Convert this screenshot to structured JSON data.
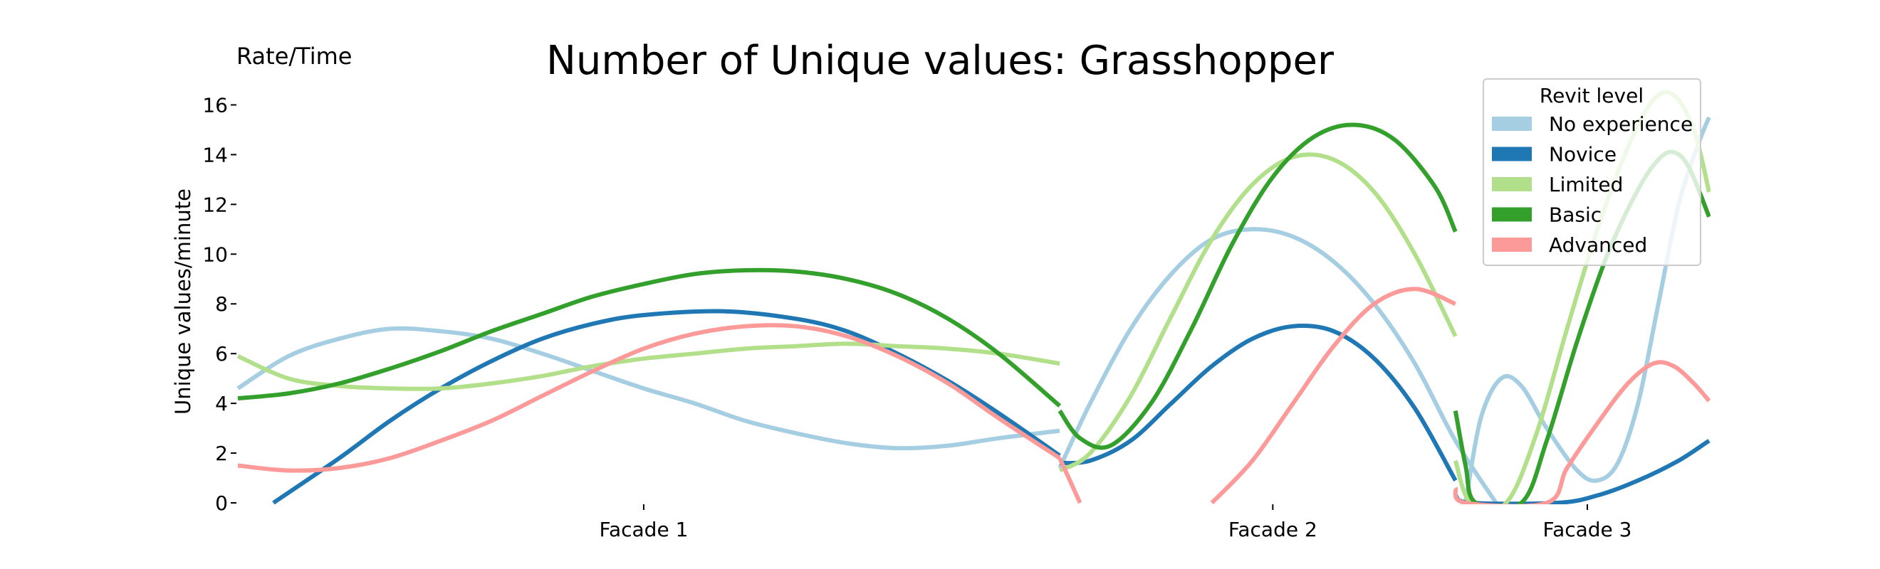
{
  "chart_data": {
    "type": "line",
    "title": "Number of Unique values: Grasshopper",
    "corner_label": "Rate/Time",
    "ylabel": "Unique values/minute",
    "xlabel": "",
    "ylim": [
      0,
      16.5
    ],
    "yticks": [
      0,
      2,
      4,
      6,
      8,
      10,
      12,
      14,
      16
    ],
    "grid": false,
    "categories": [
      "Facade 1",
      "Facade 2",
      "Facade 3"
    ],
    "category_x": [
      4.0,
      10.2,
      13.3
    ],
    "xlim": [
      0,
      14.5
    ],
    "legend": {
      "title": "Revit level",
      "placement": "top-right",
      "entries": [
        "No experience",
        "Novice",
        "Limited",
        "Basic",
        "Advanced"
      ]
    },
    "colors": [
      "#a6cee3",
      "#1f78b4",
      "#b2df8a",
      "#33a02c",
      "#fb9a99"
    ],
    "segments": [
      {
        "series": [
          {
            "points": [
              [
                0.0,
                4.6
              ],
              [
                0.5,
                5.9
              ],
              [
                1.0,
                6.6
              ],
              [
                1.5,
                7.0
              ],
              [
                2.0,
                6.9
              ],
              [
                2.5,
                6.6
              ],
              [
                3.0,
                6.0
              ],
              [
                3.5,
                5.3
              ],
              [
                4.0,
                4.6
              ],
              [
                4.5,
                4.0
              ],
              [
                5.0,
                3.3
              ],
              [
                5.5,
                2.8
              ],
              [
                6.0,
                2.4
              ],
              [
                6.5,
                2.2
              ],
              [
                7.0,
                2.3
              ],
              [
                7.5,
                2.6
              ],
              [
                8.1,
                2.9
              ]
            ]
          },
          {
            "points": [
              [
                0.35,
                0.0
              ],
              [
                1.0,
                1.8
              ],
              [
                1.5,
                3.3
              ],
              [
                2.0,
                4.6
              ],
              [
                2.5,
                5.7
              ],
              [
                3.0,
                6.6
              ],
              [
                3.5,
                7.2
              ],
              [
                4.0,
                7.55
              ],
              [
                4.8,
                7.7
              ],
              [
                5.5,
                7.4
              ],
              [
                6.0,
                6.9
              ],
              [
                6.5,
                6.0
              ],
              [
                7.0,
                4.9
              ],
              [
                7.5,
                3.6
              ],
              [
                8.1,
                1.9
              ]
            ]
          },
          {
            "points": [
              [
                0.0,
                5.9
              ],
              [
                0.5,
                5.0
              ],
              [
                1.0,
                4.7
              ],
              [
                1.5,
                4.6
              ],
              [
                2.0,
                4.6
              ],
              [
                2.5,
                4.8
              ],
              [
                3.0,
                5.1
              ],
              [
                3.5,
                5.5
              ],
              [
                4.0,
                5.8
              ],
              [
                4.5,
                6.0
              ],
              [
                5.0,
                6.2
              ],
              [
                5.5,
                6.3
              ],
              [
                6.0,
                6.4
              ],
              [
                6.5,
                6.3
              ],
              [
                7.0,
                6.2
              ],
              [
                7.5,
                6.0
              ],
              [
                8.1,
                5.6
              ]
            ]
          },
          {
            "points": [
              [
                0.0,
                4.2
              ],
              [
                0.5,
                4.4
              ],
              [
                1.0,
                4.8
              ],
              [
                1.5,
                5.4
              ],
              [
                2.0,
                6.1
              ],
              [
                2.5,
                6.9
              ],
              [
                3.0,
                7.6
              ],
              [
                3.5,
                8.3
              ],
              [
                4.0,
                8.8
              ],
              [
                4.5,
                9.2
              ],
              [
                5.0,
                9.35
              ],
              [
                5.5,
                9.3
              ],
              [
                6.0,
                9.0
              ],
              [
                6.5,
                8.4
              ],
              [
                7.0,
                7.4
              ],
              [
                7.5,
                6.0
              ],
              [
                8.1,
                3.9
              ]
            ]
          },
          {
            "points": [
              [
                0.0,
                1.5
              ],
              [
                0.5,
                1.3
              ],
              [
                1.0,
                1.4
              ],
              [
                1.5,
                1.8
              ],
              [
                2.0,
                2.5
              ],
              [
                2.5,
                3.3
              ],
              [
                3.0,
                4.3
              ],
              [
                3.5,
                5.3
              ],
              [
                4.0,
                6.2
              ],
              [
                4.5,
                6.8
              ],
              [
                5.0,
                7.1
              ],
              [
                5.5,
                7.1
              ],
              [
                6.0,
                6.7
              ],
              [
                6.5,
                5.9
              ],
              [
                7.0,
                4.8
              ],
              [
                7.5,
                3.4
              ],
              [
                8.1,
                1.8
              ]
            ]
          }
        ]
      },
      {
        "series": [
          {
            "points": [
              [
                8.1,
                1.4
              ],
              [
                8.4,
                4.0
              ],
              [
                8.8,
                7.0
              ],
              [
                9.2,
                9.2
              ],
              [
                9.6,
                10.6
              ],
              [
                10.0,
                11.0
              ],
              [
                10.4,
                10.7
              ],
              [
                10.8,
                9.7
              ],
              [
                11.2,
                8.0
              ],
              [
                11.6,
                5.6
              ],
              [
                12.0,
                2.5
              ],
              [
                12.4,
                0.0
              ]
            ]
          },
          {
            "points": [
              [
                8.1,
                1.6
              ],
              [
                8.4,
                1.7
              ],
              [
                8.8,
                2.5
              ],
              [
                9.2,
                4.0
              ],
              [
                9.6,
                5.5
              ],
              [
                10.0,
                6.6
              ],
              [
                10.4,
                7.1
              ],
              [
                10.8,
                6.9
              ],
              [
                11.2,
                5.8
              ],
              [
                11.6,
                3.8
              ],
              [
                12.0,
                0.9
              ]
            ]
          },
          {
            "points": [
              [
                8.1,
                1.3
              ],
              [
                8.4,
                2.0
              ],
              [
                8.8,
                4.3
              ],
              [
                9.2,
                7.5
              ],
              [
                9.6,
                10.6
              ],
              [
                10.0,
                12.8
              ],
              [
                10.4,
                13.9
              ],
              [
                10.8,
                13.8
              ],
              [
                11.2,
                12.5
              ],
              [
                11.6,
                10.0
              ],
              [
                12.0,
                6.7
              ]
            ]
          },
          {
            "points": [
              [
                8.1,
                3.7
              ],
              [
                8.3,
                2.6
              ],
              [
                8.6,
                2.3
              ],
              [
                9.0,
                4.0
              ],
              [
                9.4,
                7.0
              ],
              [
                9.8,
                10.4
              ],
              [
                10.2,
                13.1
              ],
              [
                10.6,
                14.7
              ],
              [
                11.0,
                15.2
              ],
              [
                11.4,
                14.6
              ],
              [
                11.8,
                12.7
              ],
              [
                12.0,
                10.9
              ]
            ]
          },
          {
            "points": [
              [
                8.1,
                1.8
              ],
              [
                8.3,
                0.0
              ]
            ],
            "extra": [
              [
                9.6,
                0.0
              ],
              [
                10.0,
                1.7
              ],
              [
                10.4,
                4.0
              ],
              [
                10.8,
                6.3
              ],
              [
                11.2,
                8.0
              ],
              [
                11.6,
                8.6
              ],
              [
                12.0,
                8.0
              ]
            ]
          }
        ]
      },
      {
        "series": [
          {
            "points": [
              [
                12.1,
                0.0
              ],
              [
                12.25,
                3.4
              ],
              [
                12.45,
                5.0
              ],
              [
                12.65,
                4.7
              ],
              [
                12.9,
                3.0
              ],
              [
                13.2,
                1.3
              ],
              [
                13.4,
                0.9
              ],
              [
                13.6,
                1.6
              ],
              [
                13.8,
                4.0
              ],
              [
                14.0,
                8.0
              ],
              [
                14.2,
                12.0
              ],
              [
                14.4,
                14.5
              ],
              [
                14.5,
                15.5
              ]
            ]
          },
          {
            "points": [
              [
                12.0,
                0.3
              ],
              [
                12.15,
                0.0
              ],
              [
                13.0,
                0.0
              ],
              [
                13.4,
                0.3
              ],
              [
                13.8,
                0.9
              ],
              [
                14.2,
                1.7
              ],
              [
                14.5,
                2.5
              ]
            ]
          },
          {
            "points": [
              [
                12.0,
                1.7
              ],
              [
                12.15,
                0.0
              ],
              [
                12.5,
                0.0
              ],
              [
                12.8,
                2.8
              ],
              [
                13.1,
                7.0
              ],
              [
                13.4,
                11.0
              ],
              [
                13.7,
                14.3
              ],
              [
                13.95,
                16.2
              ],
              [
                14.15,
                16.4
              ],
              [
                14.35,
                15.0
              ],
              [
                14.5,
                12.5
              ]
            ]
          },
          {
            "points": [
              [
                12.0,
                3.7
              ],
              [
                12.1,
                1.5
              ],
              [
                12.2,
                0.0
              ],
              [
                12.65,
                0.0
              ],
              [
                12.9,
                2.5
              ],
              [
                13.2,
                6.5
              ],
              [
                13.5,
                10.0
              ],
              [
                13.8,
                12.6
              ],
              [
                14.0,
                13.8
              ],
              [
                14.15,
                14.1
              ],
              [
                14.3,
                13.5
              ],
              [
                14.5,
                11.5
              ]
            ]
          },
          {
            "points": [
              [
                12.0,
                0.6
              ],
              [
                12.1,
                0.0
              ],
              [
                12.9,
                0.0
              ],
              [
                13.1,
                1.4
              ],
              [
                13.4,
                3.2
              ],
              [
                13.7,
                4.8
              ],
              [
                13.95,
                5.6
              ],
              [
                14.15,
                5.5
              ],
              [
                14.35,
                4.8
              ],
              [
                14.5,
                4.1
              ]
            ]
          }
        ]
      }
    ]
  }
}
